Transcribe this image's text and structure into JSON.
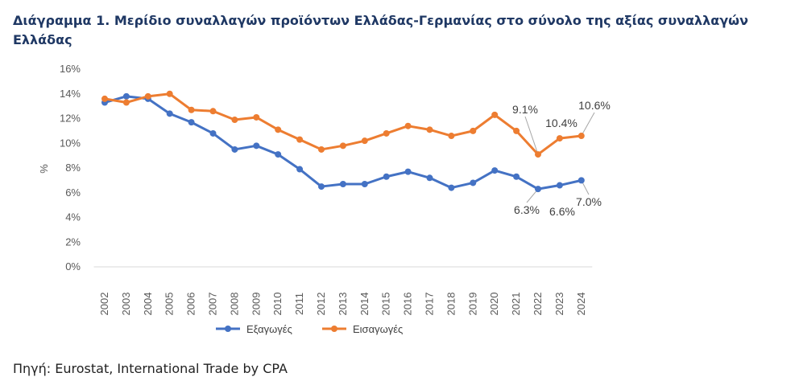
{
  "title": "Διάγραμμα 1. Μερίδιο συναλλαγών προϊόντων Ελλάδας-Γερμανίας στο σύνολο της αξίας συναλλαγών Ελλάδας",
  "source": "Πηγή: Eurostat, International Trade by CPA",
  "colors": {
    "exports": "#4472c4",
    "imports": "#ed7d31"
  },
  "chart_data": {
    "type": "line",
    "title": "Διάγραμμα 1. Μερίδιο συναλλαγών προϊόντων Ελλάδας-Γερμανίας στο σύνολο της αξίας συναλλαγών Ελλάδας",
    "xlabel": "",
    "ylabel": "%",
    "ylim": [
      0,
      16
    ],
    "yticks": [
      "0%",
      "2%",
      "4%",
      "6%",
      "8%",
      "10%",
      "12%",
      "14%",
      "16%"
    ],
    "categories": [
      "2002",
      "2003",
      "2004",
      "2005",
      "2006",
      "2007",
      "2008",
      "2009",
      "2010",
      "2011",
      "2012",
      "2013",
      "2014",
      "2015",
      "2016",
      "2017",
      "2018",
      "2019",
      "2020",
      "2021",
      "2022",
      "2023",
      "2024"
    ],
    "series": [
      {
        "name": "Εξαγωγές",
        "values": [
          13.3,
          13.8,
          13.6,
          12.4,
          11.7,
          10.8,
          9.5,
          9.8,
          9.1,
          7.9,
          6.5,
          6.7,
          6.7,
          7.3,
          7.7,
          7.2,
          6.4,
          6.8,
          7.8,
          7.3,
          6.3,
          6.6,
          7.0
        ]
      },
      {
        "name": "Εισαγωγές",
        "values": [
          13.6,
          13.3,
          13.8,
          14.0,
          12.7,
          12.6,
          11.9,
          12.1,
          11.1,
          10.3,
          9.5,
          9.8,
          10.2,
          10.8,
          11.4,
          11.1,
          10.6,
          11.0,
          12.3,
          11.0,
          9.1,
          10.4,
          10.6
        ]
      }
    ],
    "annotations": [
      "9.1%",
      "10.4%",
      "10.6%",
      "6.3%",
      "6.6%",
      "7.0%"
    ],
    "grid": false,
    "legend": "bottom"
  }
}
